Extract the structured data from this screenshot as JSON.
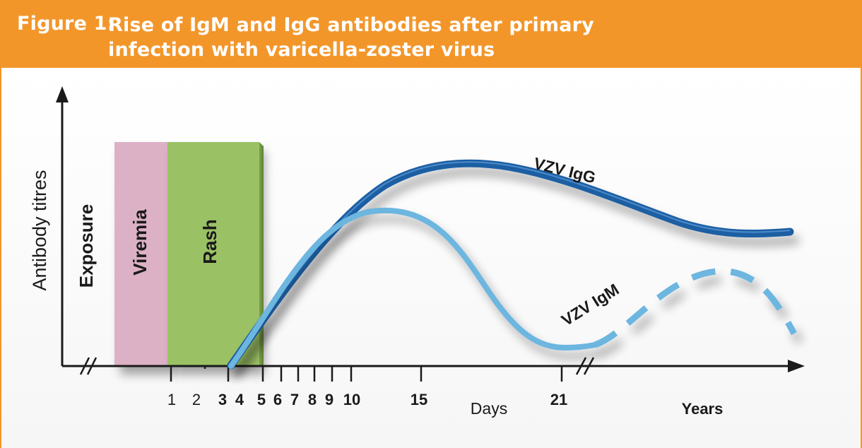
{
  "header": {
    "figure_label": "Figure 1:",
    "title": "Rise of IgM and IgG antibodies after primary infection with varicella-zoster virus"
  },
  "axes": {
    "y_label": "Antibody titres",
    "x_label": "Days",
    "x_label_years": "Years",
    "day_ticks": [
      "1",
      "2",
      "3",
      "4",
      "5",
      "6",
      "7",
      "8",
      "9",
      "10",
      "15",
      "21"
    ]
  },
  "phases": {
    "exposure": "Exposure",
    "viremia": "Viremia",
    "rash": "Rash"
  },
  "curves": {
    "igg": {
      "label": "VZV IgG",
      "color": "#1b5ea3"
    },
    "igm": {
      "label": "VZV IgM",
      "color": "#6cb6e0"
    }
  },
  "colors": {
    "header": "#f3962a",
    "viremia": "#dcb1c6",
    "rash": "#9bc165"
  }
}
